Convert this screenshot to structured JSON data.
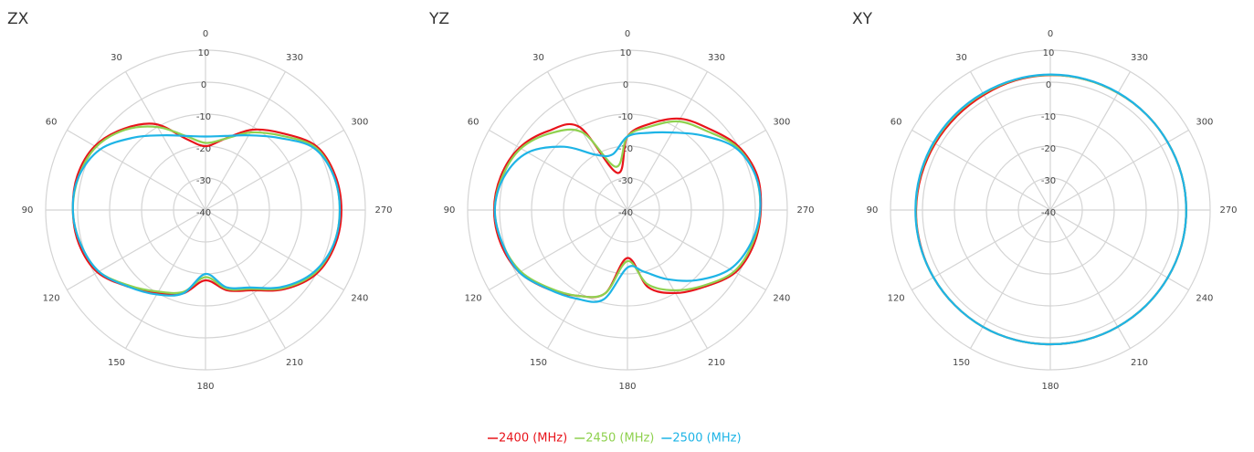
{
  "chart_data": [
    {
      "type": "polar",
      "title": "ZX",
      "theta": [
        0,
        15,
        30,
        45,
        60,
        75,
        90,
        105,
        120,
        135,
        150,
        165,
        180,
        195,
        210,
        225,
        240,
        255,
        270,
        285,
        300,
        315,
        330,
        345
      ],
      "thetaticks": [
        0,
        30,
        60,
        90,
        120,
        150,
        180,
        210,
        240,
        270,
        300,
        330
      ],
      "rlim": [
        -40,
        10
      ],
      "rticks": [
        -40,
        -30,
        -20,
        -10,
        0,
        10
      ],
      "series": [
        {
          "name": "2400 (MHz)",
          "color": "#e8141b",
          "values": [
            -20,
            -17,
            -9,
            -4,
            0,
            1.5,
            1.5,
            1,
            -1,
            -6,
            -10,
            -13,
            -18,
            -14,
            -11,
            -5,
            0,
            2,
            2.5,
            2,
            0,
            -6,
            -11,
            -17
          ]
        },
        {
          "name": "2450 (MHz)",
          "color": "#8fd14f",
          "values": [
            -19,
            -16,
            -10,
            -4.5,
            -0.5,
            1,
            1.5,
            0.5,
            -1.5,
            -6.5,
            -10.5,
            -13.5,
            -19,
            -14.5,
            -11.5,
            -5.5,
            -0.5,
            1.5,
            2,
            1.5,
            -0.5,
            -7,
            -12,
            -17
          ]
        },
        {
          "name": "2500 (MHz)",
          "color": "#1eb4e6",
          "values": [
            -17,
            -16,
            -13,
            -8,
            -2,
            1,
            1.5,
            0.5,
            -1.5,
            -6,
            -9.5,
            -13,
            -20,
            -15,
            -12,
            -6,
            -1,
            1.5,
            2,
            1.5,
            -1,
            -8,
            -13,
            -16
          ]
        }
      ]
    },
    {
      "type": "polar",
      "title": "YZ",
      "theta": [
        0,
        15,
        30,
        45,
        60,
        75,
        90,
        105,
        120,
        135,
        150,
        165,
        180,
        195,
        210,
        225,
        240,
        255,
        270,
        285,
        300,
        315,
        330,
        345
      ],
      "thetaticks": [
        0,
        30,
        60,
        90,
        120,
        150,
        180,
        210,
        240,
        270,
        300,
        330
      ],
      "rlim": [
        -40,
        10
      ],
      "rticks": [
        -40,
        -30,
        -20,
        -10,
        0,
        10
      ],
      "series": [
        {
          "name": "2400 (MHz)",
          "color": "#e8141b",
          "values": [
            -17,
            -28,
            -10,
            -5,
            -1,
            1,
            1.7,
            1,
            -1,
            -5,
            -9,
            -13,
            -25,
            -15,
            -10,
            -6,
            -1,
            1,
            1.7,
            2,
            0,
            -4,
            -7,
            -12
          ]
        },
        {
          "name": "2450 (MHz)",
          "color": "#8fd14f",
          "values": [
            -17,
            -26,
            -12,
            -6,
            -1.5,
            0.5,
            1.5,
            0.5,
            -1.5,
            -5.5,
            -9,
            -13,
            -24,
            -16,
            -11,
            -6.5,
            -1.5,
            0.5,
            1.5,
            1.5,
            -0.5,
            -5,
            -8,
            -13
          ]
        },
        {
          "name": "2500 (MHz)",
          "color": "#1eb4e6",
          "values": [
            -17,
            -22,
            -20,
            -12,
            -4,
            0,
            1.5,
            0.5,
            -1,
            -5,
            -8,
            -11,
            -22,
            -20,
            -15,
            -9,
            -3,
            0,
            1.5,
            1.5,
            -1,
            -7,
            -12,
            -15
          ]
        }
      ]
    },
    {
      "type": "polar",
      "title": "XY",
      "theta": [
        0,
        15,
        30,
        45,
        60,
        75,
        90,
        105,
        120,
        135,
        150,
        165,
        180,
        195,
        210,
        225,
        240,
        255,
        270,
        285,
        300,
        315,
        330,
        345
      ],
      "thetaticks": [
        0,
        30,
        60,
        90,
        120,
        150,
        180,
        210,
        240,
        270,
        300,
        330
      ],
      "rlim": [
        -40,
        10
      ],
      "rticks": [
        -40,
        -30,
        -20,
        -10,
        0,
        10
      ],
      "series": [
        {
          "name": "2400 (MHz)",
          "color": "#e8141b",
          "values": [
            2.2,
            2,
            1.6,
            1.5,
            1.6,
            1.8,
            2,
            2.1,
            2.2,
            2.2,
            2.2,
            2.1,
            2,
            2.1,
            2.2,
            2.3,
            2.4,
            2.5,
            2.5,
            2.5,
            2.4,
            2.4,
            2.3,
            2.3
          ]
        },
        {
          "name": "2450 (MHz)",
          "color": "#8fd14f",
          "values": [
            2.3,
            2.2,
            2,
            2,
            2,
            2.1,
            2.1,
            2.2,
            2.2,
            2.2,
            2.2,
            2.1,
            2,
            2.1,
            2.2,
            2.3,
            2.4,
            2.5,
            2.5,
            2.5,
            2.4,
            2.4,
            2.3,
            2.3
          ]
        },
        {
          "name": "2500 (MHz)",
          "color": "#1eb4e6",
          "values": [
            2.4,
            2.3,
            2.2,
            2.2,
            2.2,
            2.2,
            2.2,
            2.2,
            2.2,
            2.2,
            2.2,
            2.1,
            2,
            2.1,
            2.2,
            2.3,
            2.4,
            2.5,
            2.5,
            2.5,
            2.4,
            2.4,
            2.4,
            2.4
          ]
        }
      ]
    }
  ]
}
